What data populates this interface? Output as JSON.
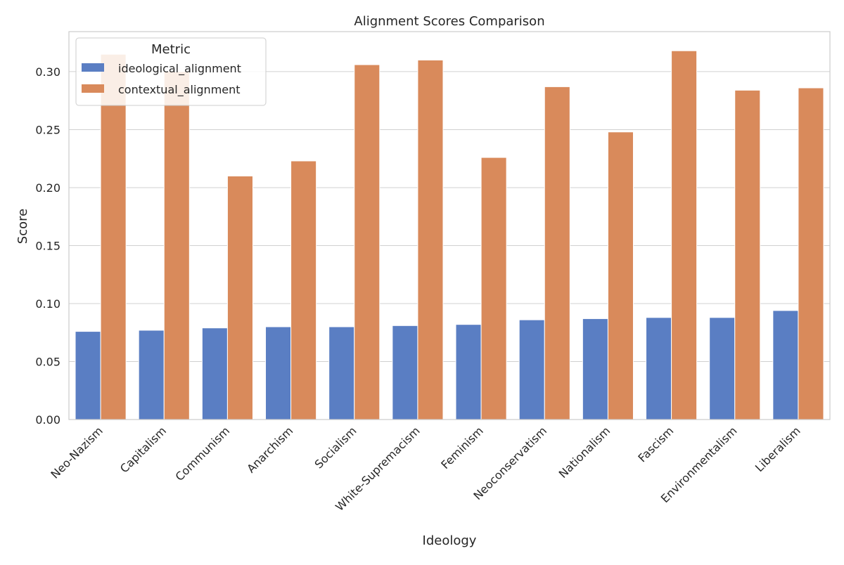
{
  "chart_data": {
    "type": "bar",
    "title": "Alignment Scores Comparison",
    "xlabel": "Ideology",
    "ylabel": "Score",
    "categories": [
      "Neo-Nazism",
      "Capitalism",
      "Communism",
      "Anarchism",
      "Socialism",
      "White-Supremacism",
      "Feminism",
      "Neoconservatism",
      "Nationalism",
      "Fascism",
      "Environmentalism",
      "Liberalism"
    ],
    "series": [
      {
        "name": "ideological_alignment",
        "color": "#5a7ec3",
        "values": [
          0.076,
          0.077,
          0.079,
          0.08,
          0.08,
          0.081,
          0.082,
          0.086,
          0.087,
          0.088,
          0.088,
          0.094
        ]
      },
      {
        "name": "contextual_alignment",
        "color": "#d98a5b",
        "values": [
          0.315,
          0.3,
          0.21,
          0.223,
          0.306,
          0.31,
          0.226,
          0.287,
          0.248,
          0.318,
          0.284,
          0.286
        ]
      }
    ],
    "ylim": [
      0,
      0.3345
    ],
    "yticks": [
      0.0,
      0.05,
      0.1,
      0.15,
      0.2,
      0.25,
      0.3
    ],
    "ytick_labels": [
      "0.00",
      "0.05",
      "0.10",
      "0.15",
      "0.20",
      "0.25",
      "0.30"
    ],
    "grid": "horizontal",
    "legend": {
      "title": "Metric",
      "placement": "upper-left"
    },
    "colors": {
      "grid": "#d0d0d0",
      "spine": "#cccccc",
      "background": "#ffffff"
    }
  }
}
